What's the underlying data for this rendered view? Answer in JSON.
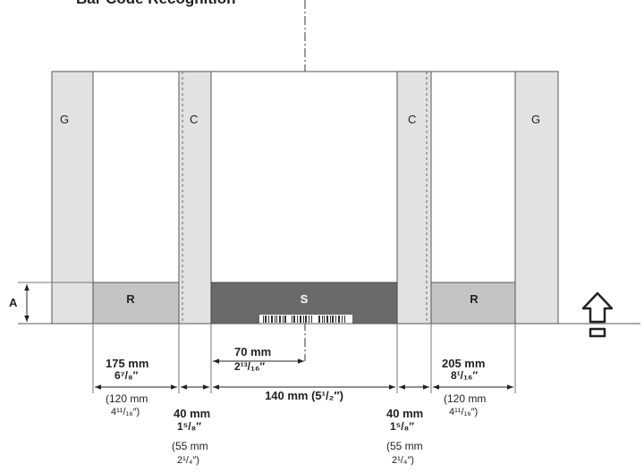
{
  "heading": "Bar Code Recognition",
  "zones": {
    "guide_left": "G",
    "guide_right": "G",
    "center_left": "C",
    "center_right": "C",
    "reader_left": "R",
    "reader_right": "R",
    "scanner": "S",
    "height_marker": "A"
  },
  "dimensions": {
    "left_reader_mm": "175 mm",
    "left_reader_in": "6⁷/₈″",
    "left_reader_alt_mm": "(120 mm",
    "left_reader_alt_in": "4¹¹/₁₆″)",
    "left_gap_mm": "40 mm",
    "left_gap_in": "1⁵/₈″",
    "left_gap_alt_mm": "(55 mm",
    "left_gap_alt_in": "2¹/₄″)",
    "half_scan_mm": "70 mm",
    "half_scan_in": "2¹³/₁₆″",
    "scan_width": "140 mm (5¹/₂″)",
    "right_gap_mm": "40 mm",
    "right_gap_in": "1⁵/₈″",
    "right_gap_alt_mm": "(55 mm",
    "right_gap_alt_in": "2¹/₄″)",
    "right_reader_mm": "205 mm",
    "right_reader_in": "8¹/₁₆″",
    "right_reader_alt_mm": "(120 mm",
    "right_reader_alt_in": "4¹¹/₁₆″)"
  },
  "colors": {
    "guide": "#e2e2e2",
    "reader": "#c4c4c4",
    "scanner": "#6a6a6a",
    "outline": "#555555"
  },
  "icons": {
    "direction": "feed-direction-arrow-icon"
  }
}
